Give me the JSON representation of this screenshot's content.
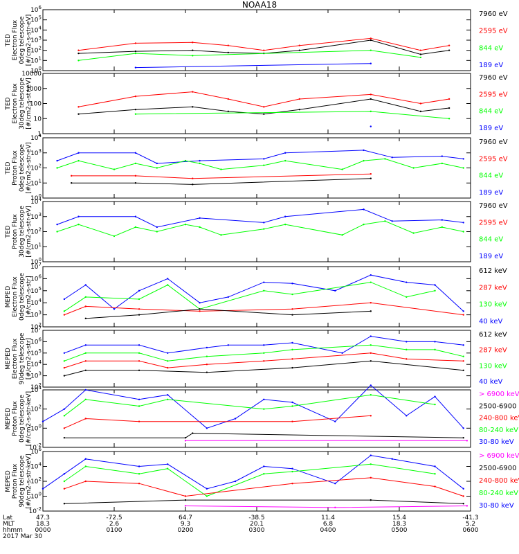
{
  "title": "NOAA18",
  "colors": {
    "blue": "#0000ff",
    "red": "#ff0000",
    "green": "#00ff00",
    "black": "#000000",
    "magenta": "#ff00ff"
  },
  "chart_data": [
    {
      "type": "line",
      "instrument": "TED",
      "ylabel": [
        "TED",
        "Electron Flux",
        "0deg telescope",
        "[#/cm2-s-str-eV]"
      ],
      "y_scale": "log",
      "yticks": [
        "10^0",
        "10^1",
        "10^2",
        "10^3",
        "10^4",
        "10^5",
        "10^6"
      ],
      "legend": [
        {
          "label": "7960 eV",
          "color": "#000000"
        },
        {
          "label": "2595 eV",
          "color": "#ff0000"
        },
        {
          "label": "844 eV",
          "color": "#00ff00"
        },
        {
          "label": "189 eV",
          "color": "#0000ff"
        }
      ],
      "series": [
        {
          "name": "7960 eV",
          "color": "#000000",
          "x": [
            0.5,
            1.3,
            2.1,
            2.6,
            3.1,
            3.6,
            4.6,
            5.3,
            5.7
          ],
          "y": [
            50,
            80,
            100,
            60,
            50,
            100,
            1000,
            40,
            100
          ]
        },
        {
          "name": "2595 eV",
          "color": "#ff0000",
          "x": [
            0.5,
            1.3,
            2.1,
            2.6,
            3.1,
            3.6,
            4.6,
            5.3,
            5.7
          ],
          "y": [
            100,
            500,
            600,
            300,
            100,
            300,
            1500,
            100,
            300
          ]
        },
        {
          "name": "844 eV",
          "color": "#00ff00",
          "x": [
            0.5,
            1.3,
            2.1,
            4.6,
            5.3
          ],
          "y": [
            10,
            50,
            30,
            100,
            20
          ]
        },
        {
          "name": "189 eV",
          "color": "#0000ff",
          "x": [
            1.3,
            4.6
          ],
          "y": [
            2,
            5
          ]
        }
      ]
    },
    {
      "type": "line",
      "instrument": "TED",
      "ylabel": [
        "TED",
        "Electron Flux",
        "30deg telescope",
        "[#/cm2-s-str-eV]"
      ],
      "y_scale": "log",
      "yticks": [
        "1",
        "10",
        "100",
        "1000",
        "10000"
      ],
      "legend": [
        {
          "label": "7960 eV",
          "color": "#000000"
        },
        {
          "label": "2595 eV",
          "color": "#ff0000"
        },
        {
          "label": "844 eV",
          "color": "#00ff00"
        },
        {
          "label": "189 eV",
          "color": "#0000ff"
        }
      ],
      "series": [
        {
          "name": "7960 eV",
          "color": "#000000",
          "x": [
            0.5,
            1.3,
            2.1,
            2.6,
            3.1,
            3.6,
            4.6,
            5.3,
            5.7
          ],
          "y": [
            20,
            40,
            60,
            30,
            20,
            40,
            200,
            30,
            50
          ]
        },
        {
          "name": "2595 eV",
          "color": "#ff0000",
          "x": [
            0.5,
            1.3,
            2.1,
            2.6,
            3.1,
            3.6,
            4.6,
            5.3,
            5.7
          ],
          "y": [
            60,
            300,
            600,
            200,
            60,
            200,
            400,
            100,
            200
          ]
        },
        {
          "name": "844 eV",
          "color": "#00ff00",
          "x": [
            1.3,
            4.6,
            5.7
          ],
          "y": [
            20,
            30,
            10
          ]
        },
        {
          "name": "189 eV",
          "color": "#0000ff",
          "x": [
            4.6
          ],
          "y": [
            3
          ]
        }
      ]
    },
    {
      "type": "line",
      "instrument": "TED",
      "ylabel": [
        "TED",
        "Proton Flux",
        "0deg telescope",
        "[#/cm2-s-str-eV]"
      ],
      "y_scale": "log",
      "yticks": [
        "10^0",
        "10^1",
        "10^2",
        "10^3",
        "10^4"
      ],
      "legend": [
        {
          "label": "7960 eV",
          "color": "#000000"
        },
        {
          "label": "2595 eV",
          "color": "#ff0000"
        },
        {
          "label": "844 eV",
          "color": "#00ff00"
        },
        {
          "label": "189 eV",
          "color": "#0000ff"
        }
      ],
      "series": [
        {
          "name": "189 eV",
          "color": "#0000ff",
          "x": [
            0.2,
            0.5,
            1.3,
            1.6,
            2.2,
            3.1,
            3.4,
            4.5,
            4.9,
            5.6,
            5.9
          ],
          "y": [
            300,
            1000,
            1000,
            200,
            300,
            400,
            1000,
            1500,
            500,
            600,
            400
          ]
        },
        {
          "name": "844 eV",
          "color": "#00ff00",
          "x": [
            0.2,
            0.5,
            1.0,
            1.3,
            1.6,
            2.0,
            2.2,
            2.5,
            3.1,
            3.4,
            4.2,
            4.5,
            4.8,
            5.2,
            5.6,
            5.9
          ],
          "y": [
            100,
            300,
            80,
            200,
            100,
            300,
            200,
            80,
            150,
            300,
            80,
            300,
            400,
            100,
            200,
            100
          ]
        },
        {
          "name": "2595 eV",
          "color": "#ff0000",
          "x": [
            0.4,
            1.3,
            2.1,
            4.6
          ],
          "y": [
            30,
            30,
            20,
            40
          ]
        },
        {
          "name": "7960 eV",
          "color": "#000000",
          "x": [
            0.4,
            1.3,
            2.1,
            4.6
          ],
          "y": [
            10,
            10,
            8,
            20
          ]
        }
      ]
    },
    {
      "type": "line",
      "instrument": "TED",
      "ylabel": [
        "TED",
        "Proton Flux",
        "30deg telescope",
        "[#/cm2-s-str-eV]"
      ],
      "y_scale": "log",
      "yticks": [
        "10^0",
        "10^1",
        "10^2",
        "10^3",
        "10^4"
      ],
      "legend": [
        {
          "label": "7960 eV",
          "color": "#000000"
        },
        {
          "label": "2595 eV",
          "color": "#ff0000"
        },
        {
          "label": "844 eV",
          "color": "#00ff00"
        },
        {
          "label": "189 eV",
          "color": "#0000ff"
        }
      ],
      "series": [
        {
          "name": "189 eV",
          "color": "#0000ff",
          "x": [
            0.2,
            0.5,
            1.3,
            1.6,
            2.2,
            3.1,
            3.4,
            4.5,
            4.9,
            5.6,
            5.9
          ],
          "y": [
            300,
            1000,
            1000,
            200,
            800,
            400,
            1000,
            3000,
            500,
            600,
            400
          ]
        },
        {
          "name": "844 eV",
          "color": "#00ff00",
          "x": [
            0.2,
            0.5,
            1.0,
            1.3,
            1.6,
            2.0,
            2.2,
            2.5,
            3.1,
            3.4,
            4.2,
            4.5,
            4.8,
            5.2,
            5.6,
            5.9
          ],
          "y": [
            100,
            300,
            50,
            200,
            100,
            300,
            200,
            60,
            150,
            300,
            60,
            300,
            500,
            80,
            200,
            100
          ]
        }
      ]
    },
    {
      "type": "line",
      "instrument": "MEPED",
      "ylabel": [
        "MEPED",
        "Electron Flux",
        "0deg telescope",
        "[#/cm2-s-str]"
      ],
      "y_scale": "log",
      "yticks": [
        "10^2",
        "10^3",
        "10^4",
        "10^5",
        "10^6",
        "10^7"
      ],
      "legend": [
        {
          "label": "612 keV",
          "color": "#000000"
        },
        {
          "label": "287 keV",
          "color": "#ff0000"
        },
        {
          "label": "130 keV",
          "color": "#00ff00"
        },
        {
          "label": "40 keV",
          "color": "#0000ff"
        }
      ],
      "series": [
        {
          "name": "40 keV",
          "color": "#0000ff",
          "x": [
            0.3,
            0.6,
            1.0,
            1.35,
            1.75,
            2.2,
            2.6,
            3.1,
            3.5,
            4.1,
            4.6,
            5.1,
            5.5,
            5.9
          ],
          "y": [
            20000,
            300000,
            3000,
            100000,
            1000000,
            10000,
            30000,
            500000,
            400000,
            100000,
            2000000,
            500000,
            300000,
            2000
          ]
        },
        {
          "name": "130 keV",
          "color": "#00ff00",
          "x": [
            0.3,
            0.6,
            1.35,
            1.75,
            2.2,
            3.1,
            3.5,
            4.6,
            5.1,
            5.5
          ],
          "y": [
            2000,
            30000,
            20000,
            300000,
            3000,
            100000,
            50000,
            500000,
            30000,
            100000
          ]
        },
        {
          "name": "287 keV",
          "color": "#ff0000",
          "x": [
            0.3,
            0.6,
            1.35,
            2.2,
            3.5,
            4.6,
            5.9
          ],
          "y": [
            1000,
            5000,
            3000,
            2000,
            3000,
            10000,
            1000
          ]
        },
        {
          "name": "612 keV",
          "color": "#000000",
          "x": [
            0.6,
            1.35,
            2.2,
            3.5,
            4.6
          ],
          "y": [
            500,
            1000,
            3000,
            1000,
            2000
          ]
        }
      ]
    },
    {
      "type": "line",
      "instrument": "MEPED",
      "ylabel": [
        "MEPED",
        "Electron Flux",
        "90deg telescope",
        "[#/cm2-s-str]"
      ],
      "y_scale": "log",
      "yticks": [
        "10^2",
        "10^3",
        "10^4",
        "10^5",
        "10^6",
        "10^7"
      ],
      "legend": [
        {
          "label": "612 keV",
          "color": "#000000"
        },
        {
          "label": "287 keV",
          "color": "#ff0000"
        },
        {
          "label": "130 keV",
          "color": "#00ff00"
        },
        {
          "label": "40 keV",
          "color": "#0000ff"
        }
      ],
      "series": [
        {
          "name": "40 keV",
          "color": "#0000ff",
          "x": [
            0.3,
            0.6,
            1.35,
            1.75,
            2.3,
            2.6,
            3.1,
            3.5,
            4.2,
            4.6,
            5.1,
            5.5,
            5.9
          ],
          "y": [
            100000,
            500000,
            500000,
            100000,
            300000,
            500000,
            500000,
            800000,
            100000,
            3000000,
            1000000,
            1000000,
            500000
          ]
        },
        {
          "name": "130 keV",
          "color": "#00ff00",
          "x": [
            0.3,
            0.6,
            1.35,
            1.75,
            2.3,
            3.1,
            3.5,
            4.6,
            5.1,
            5.5,
            5.9
          ],
          "y": [
            20000,
            100000,
            100000,
            20000,
            50000,
            100000,
            200000,
            500000,
            200000,
            200000,
            50000
          ]
        },
        {
          "name": "287 keV",
          "color": "#ff0000",
          "x": [
            0.3,
            0.6,
            1.35,
            1.75,
            2.3,
            3.1,
            3.5,
            4.6,
            5.1,
            5.9
          ],
          "y": [
            5000,
            20000,
            20000,
            5000,
            10000,
            20000,
            30000,
            100000,
            30000,
            20000
          ]
        },
        {
          "name": "612 keV",
          "color": "#000000",
          "x": [
            0.3,
            0.6,
            1.35,
            2.3,
            3.5,
            4.6,
            5.9
          ],
          "y": [
            1000,
            3000,
            3000,
            2000,
            5000,
            20000,
            3000
          ]
        }
      ]
    },
    {
      "type": "line",
      "instrument": "MEPED",
      "ylabel": [
        "MEPED",
        "Proton Flux",
        "0deg telescope",
        "[#/cm2-s-str-keV]"
      ],
      "y_scale": "log",
      "yticks": [
        "10^-2",
        "10^0",
        "10^2",
        "10^4"
      ],
      "legend": [
        {
          "label": "> 6900 keV",
          "color": "#ff00ff"
        },
        {
          "label": "2500-6900",
          "color": "#000000"
        },
        {
          "label": "240-800 keV",
          "color": "#ff0000"
        },
        {
          "label": "80-240 keV",
          "color": "#00ff00"
        },
        {
          "label": "30-80 keV",
          "color": "#0000ff"
        }
      ],
      "series": [
        {
          "name": "30-80 keV",
          "color": "#0000ff",
          "x": [
            0.0,
            0.3,
            0.6,
            1.35,
            1.75,
            2.3,
            2.7,
            3.1,
            3.5,
            4.1,
            4.6,
            5.1,
            5.5,
            5.9
          ],
          "y": [
            5,
            100,
            10000,
            1000,
            3000,
            1,
            10,
            1000,
            500,
            5,
            30000,
            20,
            2000,
            1
          ]
        },
        {
          "name": "80-240 keV",
          "color": "#00ff00",
          "x": [
            0.3,
            0.6,
            1.35,
            1.75,
            3.1,
            3.5,
            4.6,
            5.5
          ],
          "y": [
            20,
            1000,
            200,
            1000,
            100,
            200,
            3000,
            300
          ]
        },
        {
          "name": "240-800 keV",
          "color": "#ff0000",
          "x": [
            0.3,
            0.6,
            1.35,
            3.5,
            4.6
          ],
          "y": [
            1,
            10,
            5,
            5,
            20
          ]
        },
        {
          "name": "2500-6900",
          "color": "#000000",
          "x": [
            0.3,
            2.0,
            2.1,
            5.9
          ],
          "y": [
            0.1,
            0.1,
            0.3,
            0.1
          ]
        },
        {
          "name": "> 6900 keV",
          "color": "#ff00ff",
          "x": [
            2.0,
            5.95
          ],
          "y": [
            0.05,
            0.05
          ]
        }
      ]
    },
    {
      "type": "line",
      "instrument": "MEPED",
      "ylabel": [
        "MEPED",
        "Proton Flux",
        "90deg telescope",
        "[#/cm2-s-str-keV]"
      ],
      "y_scale": "log",
      "yticks": [
        "10^-2",
        "10^0",
        "10^2",
        "10^4",
        "10^6"
      ],
      "legend": [
        {
          "label": "> 6900 keV",
          "color": "#ff00ff"
        },
        {
          "label": "2500-6900",
          "color": "#000000"
        },
        {
          "label": "240-800 keV",
          "color": "#ff0000"
        },
        {
          "label": "80-240 keV",
          "color": "#00ff00"
        },
        {
          "label": "30-80 keV",
          "color": "#0000ff"
        }
      ],
      "series": [
        {
          "name": "30-80 keV",
          "color": "#0000ff",
          "x": [
            0.0,
            0.3,
            0.6,
            1.35,
            1.75,
            2.3,
            2.7,
            3.1,
            3.5,
            4.1,
            4.6,
            4.9,
            5.5,
            5.9
          ],
          "y": [
            10,
            1000,
            100000,
            10000,
            20000,
            10,
            100,
            10000,
            5000,
            50,
            300000,
            100000,
            10000,
            10
          ]
        },
        {
          "name": "80-240 keV",
          "color": "#00ff00",
          "x": [
            0.3,
            0.6,
            1.35,
            1.75,
            2.3,
            3.1,
            3.5,
            4.6,
            5.5
          ],
          "y": [
            100,
            10000,
            1000,
            5000,
            1,
            1000,
            2000,
            20000,
            1000
          ]
        },
        {
          "name": "240-800 keV",
          "color": "#ff0000",
          "x": [
            0.3,
            0.6,
            1.35,
            2.0,
            3.5,
            4.6,
            5.5,
            5.9
          ],
          "y": [
            10,
            100,
            50,
            1,
            50,
            300,
            20,
            1
          ]
        },
        {
          "name": "2500-6900",
          "color": "#000000",
          "x": [
            0.3,
            2.0,
            4.6,
            5.9
          ],
          "y": [
            0.1,
            0.3,
            0.3,
            0.1
          ]
        },
        {
          "name": "> 6900 keV",
          "color": "#ff00ff",
          "x": [
            2.0,
            4.1,
            5.95
          ],
          "y": [
            0.05,
            0.03,
            0.05
          ]
        }
      ]
    }
  ],
  "x_axis": {
    "rows": [
      {
        "label": "Lat",
        "values": [
          "47.3",
          "-72.5",
          "64.7",
          "-38.5",
          "11.4",
          "15.4",
          "-41.3"
        ]
      },
      {
        "label": "MLT",
        "values": [
          "18.3",
          "2.6",
          "9.3",
          "20.1",
          "6.8",
          "18.3",
          "5.2"
        ]
      },
      {
        "label": "hhmm",
        "values": [
          "0000",
          "0100",
          "0200",
          "0300",
          "0400",
          "0500",
          "0600"
        ]
      }
    ],
    "date": "2017 Mar 30",
    "xlim": [
      0,
      6
    ],
    "unit": "hours"
  }
}
